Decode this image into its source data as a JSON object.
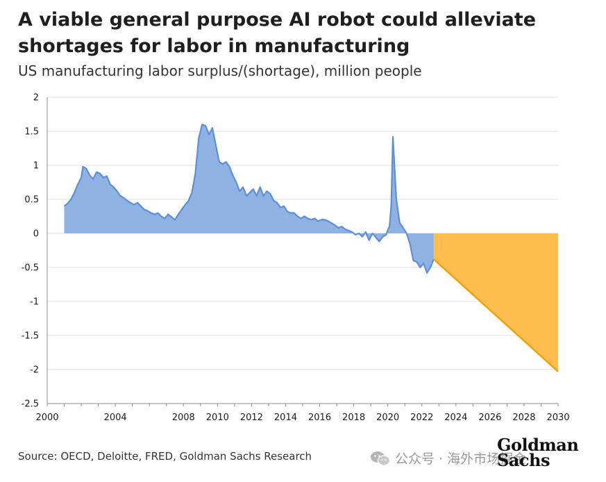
{
  "title": "A viable general purpose AI robot could alleviate shortages for labor in manufacturing",
  "subtitle": "US manufacturing labor surplus/(shortage), million people",
  "source": "Source: OECD, Deloitte, FRED, Goldman Sachs Research",
  "watermark": {
    "text": "公众号 · 海外市场掘金",
    "icon": "wechat-icon"
  },
  "logo": {
    "line1": "Goldman",
    "line2": "Sachs"
  },
  "colors": {
    "historical_fill": "#8fb2e3",
    "historical_line": "#5b8fd8",
    "projection_fill": "#ffbe4d",
    "projection_line": "#f5a000",
    "grid": "#dcdcdc",
    "axis": "#8c8c8c"
  },
  "chart_data": {
    "type": "area",
    "title": "A viable general purpose AI robot could alleviate shortages for labor in manufacturing",
    "subtitle": "US manufacturing labor surplus/(shortage), million people",
    "xlabel": "",
    "ylabel": "",
    "xlim": [
      2000,
      2030
    ],
    "ylim": [
      -2.5,
      2
    ],
    "grid": "horizontal",
    "x_ticks": [
      2000,
      2004,
      2008,
      2010,
      2012,
      2014,
      2016,
      2018,
      2020,
      2022,
      2024,
      2026,
      2028,
      2030
    ],
    "y_ticks": [
      "2",
      "1.5",
      "1",
      "0.5",
      "0",
      "-0.5",
      "-1",
      "-1.5",
      "-2",
      "-2.5"
    ],
    "y_tick_values": [
      2,
      1.5,
      1,
      0.5,
      0,
      -0.5,
      -1,
      -1.5,
      -2,
      -2.5
    ],
    "series": [
      {
        "kind": "historical",
        "x": [
          2001.0,
          2001.2,
          2001.4,
          2001.6,
          2001.8,
          2002.0,
          2002.1,
          2002.3,
          2002.5,
          2002.7,
          2002.9,
          2003.1,
          2003.3,
          2003.5,
          2003.7,
          2003.9,
          2004.1,
          2004.3,
          2004.5,
          2004.7,
          2004.9,
          2005.1,
          2005.3,
          2005.5,
          2005.7,
          2005.9,
          2006.1,
          2006.3,
          2006.5,
          2006.7,
          2006.9,
          2007.1,
          2007.3,
          2007.5,
          2007.7,
          2007.9,
          2008.1,
          2008.3,
          2008.5,
          2008.7,
          2008.9,
          2009.1,
          2009.3,
          2009.5,
          2009.7,
          2009.9,
          2010.1,
          2010.3,
          2010.5,
          2010.7,
          2010.9,
          2011.1,
          2011.3,
          2011.5,
          2011.7,
          2011.9,
          2012.1,
          2012.3,
          2012.5,
          2012.7,
          2012.9,
          2013.1,
          2013.3,
          2013.5,
          2013.7,
          2013.9,
          2014.1,
          2014.3,
          2014.5,
          2014.7,
          2014.9,
          2015.1,
          2015.3,
          2015.5,
          2015.7,
          2015.9,
          2016.1,
          2016.3,
          2016.5,
          2016.7,
          2016.9,
          2017.1,
          2017.3,
          2017.5,
          2017.7,
          2017.9,
          2018.1,
          2018.3,
          2018.5,
          2018.7,
          2018.9,
          2019.1,
          2019.3,
          2019.5,
          2019.7,
          2019.9,
          2020.0,
          2020.1,
          2020.2,
          2020.3,
          2020.4,
          2020.5,
          2020.7,
          2020.9,
          2021.1,
          2021.3,
          2021.5,
          2021.7,
          2021.9,
          2022.1,
          2022.3,
          2022.5,
          2022.7
        ],
        "y": [
          0.4,
          0.44,
          0.5,
          0.6,
          0.72,
          0.82,
          0.98,
          0.95,
          0.85,
          0.8,
          0.9,
          0.88,
          0.82,
          0.84,
          0.72,
          0.68,
          0.62,
          0.55,
          0.52,
          0.48,
          0.45,
          0.42,
          0.45,
          0.4,
          0.35,
          0.33,
          0.3,
          0.28,
          0.3,
          0.25,
          0.22,
          0.28,
          0.24,
          0.2,
          0.28,
          0.35,
          0.42,
          0.48,
          0.6,
          0.88,
          1.4,
          1.6,
          1.58,
          1.45,
          1.55,
          1.3,
          1.05,
          1.02,
          1.05,
          0.98,
          0.85,
          0.75,
          0.62,
          0.68,
          0.55,
          0.6,
          0.65,
          0.55,
          0.68,
          0.55,
          0.62,
          0.58,
          0.48,
          0.45,
          0.38,
          0.4,
          0.32,
          0.3,
          0.3,
          0.25,
          0.22,
          0.25,
          0.22,
          0.2,
          0.22,
          0.18,
          0.2,
          0.2,
          0.18,
          0.15,
          0.12,
          0.08,
          0.1,
          0.06,
          0.04,
          0.02,
          -0.02,
          0.0,
          -0.05,
          0.02,
          -0.1,
          0.0,
          -0.06,
          -0.12,
          -0.05,
          -0.02,
          0.05,
          0.1,
          0.4,
          1.42,
          0.95,
          0.5,
          0.15,
          0.08,
          0.0,
          -0.15,
          -0.4,
          -0.42,
          -0.5,
          -0.44,
          -0.58,
          -0.5,
          -0.38
        ],
        "series_kind_note": ""
      },
      {
        "kind": "projection",
        "x": [
          2022.7,
          2030.0
        ],
        "y": [
          -0.38,
          -2.03
        ]
      }
    ]
  }
}
